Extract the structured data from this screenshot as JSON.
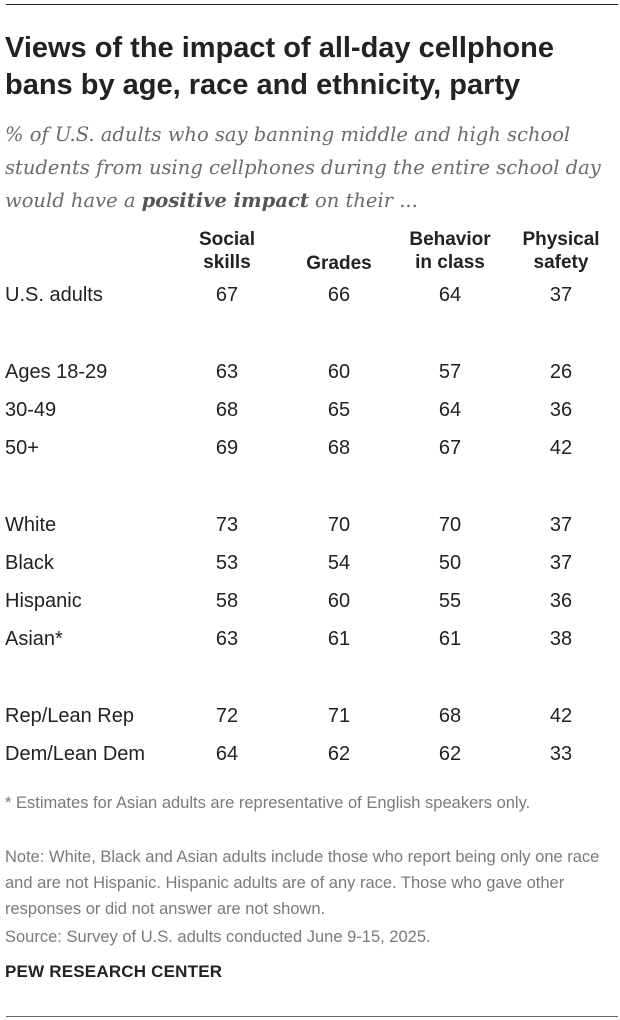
{
  "title": "Views of the impact of all-day cellphone bans by age, race and ethnicity, party",
  "subtitle": {
    "before": "% of U.S. adults who say banning middle and high school students from using cellphones during the entire school day would have a ",
    "emphasis": "positive impact",
    "after": " on their ..."
  },
  "chart_data": {
    "type": "table",
    "columns": [
      {
        "lines": [
          "Social",
          "skills"
        ]
      },
      {
        "lines": [
          "Grades"
        ]
      },
      {
        "lines": [
          "Behavior",
          "in class"
        ]
      },
      {
        "lines": [
          "Physical",
          "safety"
        ]
      }
    ],
    "rows": [
      {
        "label": "U.S. adults",
        "values": [
          67,
          66,
          64,
          37
        ]
      },
      {
        "label": "Ages 18-29",
        "values": [
          63,
          60,
          57,
          26
        ]
      },
      {
        "label": "30-49",
        "values": [
          68,
          65,
          64,
          36
        ]
      },
      {
        "label": "50+",
        "values": [
          69,
          68,
          67,
          42
        ]
      },
      {
        "label": "White",
        "values": [
          73,
          70,
          70,
          37
        ]
      },
      {
        "label": "Black",
        "values": [
          53,
          54,
          50,
          37
        ]
      },
      {
        "label": "Hispanic",
        "values": [
          58,
          60,
          55,
          36
        ]
      },
      {
        "label": "Asian*",
        "values": [
          63,
          61,
          61,
          38
        ]
      },
      {
        "label": "Rep/Lean Rep",
        "values": [
          72,
          71,
          68,
          42
        ]
      },
      {
        "label": "Dem/Lean Dem",
        "values": [
          64,
          62,
          62,
          33
        ]
      }
    ]
  },
  "notes": {
    "asterisk": "* Estimates for Asian adults are representative of English speakers only.",
    "note": "Note: White, Black and Asian adults include those who report being only one race and are not Hispanic. Hispanic adults are of any race. Those who gave other responses or did not answer are not shown.",
    "source": "Source: Survey of U.S. adults conducted June 9-15, 2025."
  },
  "brand": "PEW RESEARCH CENTER"
}
